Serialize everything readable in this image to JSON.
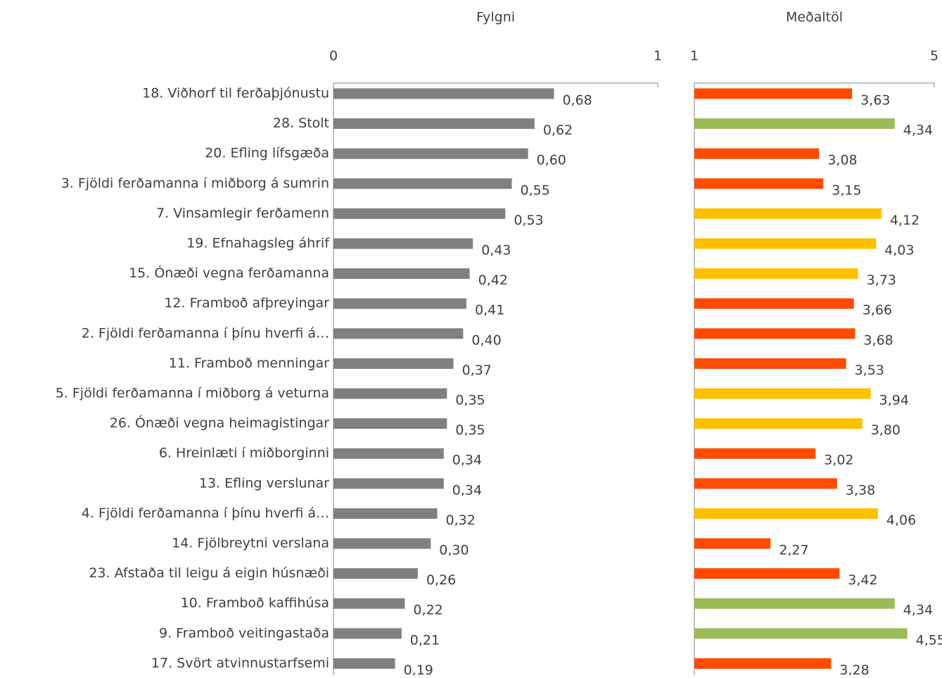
{
  "chart_data": [
    {
      "type": "bar",
      "title": "Fylgni",
      "categories": [
        "18. Viðhorf til ferðaþjónustu",
        "28. Stolt",
        "20. Efling lífsgæða",
        "3. Fjöldi ferðamanna í miðborg á sumrin",
        "7. Vinsamlegir ferðamenn",
        "19. Efnahagsleg áhrif",
        "15. Ónæði vegna ferðamanna",
        "12. Framboð afþreyingar",
        "2. Fjöldi ferðamanna í þínu hverfi á…",
        "11. Framboð menningar",
        "5. Fjöldi ferðamanna í miðborg á veturna",
        "26. Ónæði vegna heimagistingar",
        "6. Hreinlæti í miðborginni",
        "13. Efling verslunar",
        "4. Fjöldi ferðamanna í þínu hverfi á…",
        "14. Fjölbreytni verslana",
        "23. Afstaða til leigu á eigin húsnæði",
        "10. Framboð kaffihúsa",
        "9. Framboð veitingastaða",
        "17. Svört atvinnustarfsemi"
      ],
      "values": [
        0.68,
        0.62,
        0.6,
        0.55,
        0.53,
        0.43,
        0.42,
        0.41,
        0.4,
        0.37,
        0.35,
        0.35,
        0.34,
        0.34,
        0.32,
        0.3,
        0.26,
        0.22,
        0.21,
        0.19
      ],
      "value_labels": [
        "0,68",
        "0,62",
        "0,60",
        "0,55",
        "0,53",
        "0,43",
        "0,42",
        "0,41",
        "0,40",
        "0,37",
        "0,35",
        "0,35",
        "0,34",
        "0,34",
        "0,32",
        "0,30",
        "0,26",
        "0,22",
        "0,21",
        "0,19"
      ],
      "color": "#808080",
      "xlim": [
        0,
        1
      ],
      "xticks": [
        0,
        1
      ]
    },
    {
      "type": "bar",
      "title": "Meðaltöl",
      "values": [
        3.63,
        4.34,
        3.08,
        3.15,
        4.12,
        4.03,
        3.73,
        3.66,
        3.68,
        3.53,
        3.94,
        3.8,
        3.02,
        3.38,
        4.06,
        2.27,
        3.42,
        4.34,
        4.55,
        3.28
      ],
      "value_labels": [
        "3,63",
        "4,34",
        "3,08",
        "3,15",
        "4,12",
        "4,03",
        "3,73",
        "3,66",
        "3,68",
        "3,53",
        "3,94",
        "3,80",
        "3,02",
        "3,38",
        "4,06",
        "2,27",
        "3,42",
        "4,34",
        "4,55",
        "3,28"
      ],
      "colors": [
        "#ff4b00",
        "#9bbb59",
        "#ff4b00",
        "#ff4b00",
        "#ffc000",
        "#ffc000",
        "#ffc000",
        "#ff4b00",
        "#ff4b00",
        "#ff4b00",
        "#ffc000",
        "#ffc000",
        "#ff4b00",
        "#ff4b00",
        "#ffc000",
        "#ff4b00",
        "#ff4b00",
        "#9bbb59",
        "#9bbb59",
        "#ff4b00"
      ],
      "xlim": [
        1,
        5
      ],
      "xticks": [
        1,
        5
      ]
    }
  ]
}
